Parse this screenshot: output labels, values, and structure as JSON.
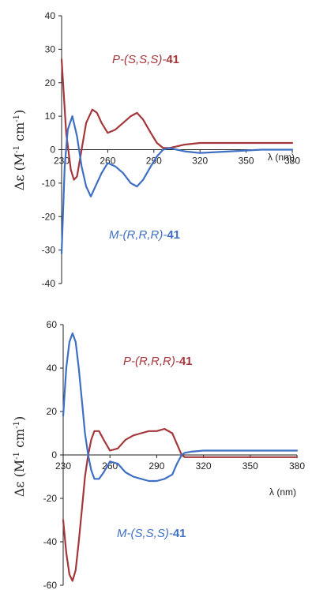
{
  "colors": {
    "red": "#a4373c",
    "blue": "#3f6fc3",
    "axis": "#222222"
  },
  "chart_data": [
    {
      "type": "line",
      "title": "",
      "xlabel": "λ (nm)",
      "ylabel": "Δε (M⁻¹ cm⁻¹)",
      "ylabel_parts": {
        "symbol": "Δε",
        "open": " (M",
        "sup1": "-1",
        "mid": " cm",
        "sup2": "-1",
        "close": ")"
      },
      "xlim": [
        230,
        380
      ],
      "ylim": [
        -40,
        40
      ],
      "xticks": [
        "230",
        "260",
        "290",
        "320",
        "350",
        "380"
      ],
      "yticks": [
        "40",
        "30",
        "20",
        "10",
        "0",
        "-10",
        "-20",
        "-30",
        "-40"
      ],
      "series": [
        {
          "name": "P-(S,S,S)-41",
          "label_parts": {
            "prefix": "P-(S,S,S)-",
            "number": "41"
          },
          "color": "#a4373c",
          "x": [
            230,
            233,
            236,
            238,
            240,
            243,
            246,
            250,
            253,
            256,
            260,
            265,
            270,
            275,
            279,
            283,
            288,
            292,
            296,
            300,
            305,
            310,
            320,
            340,
            360,
            380
          ],
          "y": [
            27,
            5,
            -6,
            -9,
            -8,
            0,
            8,
            12,
            11,
            8,
            5,
            6,
            8,
            10,
            11,
            9,
            5,
            2,
            0.5,
            0.5,
            1,
            1.5,
            2,
            2,
            2,
            2
          ]
        },
        {
          "name": "M-(R,R,R)-41",
          "label_parts": {
            "prefix": "M-(R,R,R)-",
            "number": "41"
          },
          "color": "#3f6fc3",
          "x": [
            230,
            232,
            234,
            237,
            240,
            243,
            246,
            249,
            252,
            256,
            260,
            265,
            270,
            275,
            279,
            283,
            288,
            292,
            296,
            300,
            305,
            310,
            320,
            340,
            360,
            380
          ],
          "y": [
            -31,
            -5,
            6,
            10,
            4,
            -5,
            -11,
            -14,
            -11,
            -7,
            -4,
            -5,
            -7,
            -10,
            -11,
            -9,
            -5,
            -2,
            0,
            0.5,
            0,
            -0.5,
            -1,
            -0.5,
            0,
            0
          ]
        }
      ]
    },
    {
      "type": "line",
      "title": "",
      "xlabel": "λ (nm)",
      "ylabel": "Δε (M⁻¹ cm⁻¹)",
      "ylabel_parts": {
        "symbol": "Δε",
        "open": " (M",
        "sup1": "-1",
        "mid": " cm",
        "sup2": "-1",
        "close": ")"
      },
      "xlim": [
        230,
        380
      ],
      "ylim": [
        -60,
        60
      ],
      "xticks": [
        "230",
        "260",
        "290",
        "320",
        "350",
        "380"
      ],
      "yticks": [
        "60",
        "40",
        "20",
        "0",
        "-20",
        "-40",
        "-60"
      ],
      "series": [
        {
          "name": "P-(R,R,R)-41",
          "label_parts": {
            "prefix": "P-(R,R,R)-",
            "number": "41"
          },
          "color": "#a4373c",
          "x": [
            230,
            232,
            234,
            236,
            238,
            240,
            242,
            244,
            246,
            248,
            250,
            253,
            256,
            260,
            265,
            270,
            275,
            280,
            285,
            290,
            295,
            300,
            303,
            306,
            308,
            312,
            320,
            340,
            360,
            380
          ],
          "y": [
            -30,
            -45,
            -55,
            -58,
            -53,
            -40,
            -25,
            -10,
            0,
            7,
            11,
            11,
            7,
            2,
            3,
            7,
            9,
            10,
            11,
            11,
            12,
            10,
            5,
            0,
            -1,
            -1,
            -1,
            -1,
            -1,
            -1
          ]
        },
        {
          "name": "M-(S,S,S)-41",
          "label_parts": {
            "prefix": "M-(S,S,S)-",
            "number": "41"
          },
          "color": "#3f6fc3",
          "x": [
            230,
            232,
            234,
            236,
            238,
            240,
            242,
            244,
            246,
            248,
            250,
            253,
            256,
            260,
            265,
            270,
            275,
            280,
            285,
            290,
            295,
            300,
            303,
            306,
            308,
            312,
            320,
            340,
            360,
            380
          ],
          "y": [
            18,
            40,
            52,
            56,
            52,
            40,
            25,
            10,
            0,
            -7,
            -11,
            -11,
            -8,
            -3,
            -4,
            -8,
            -10,
            -11,
            -12,
            -12,
            -11,
            -9,
            -4,
            0,
            1,
            1.5,
            2,
            2,
            2,
            2
          ]
        }
      ]
    }
  ]
}
